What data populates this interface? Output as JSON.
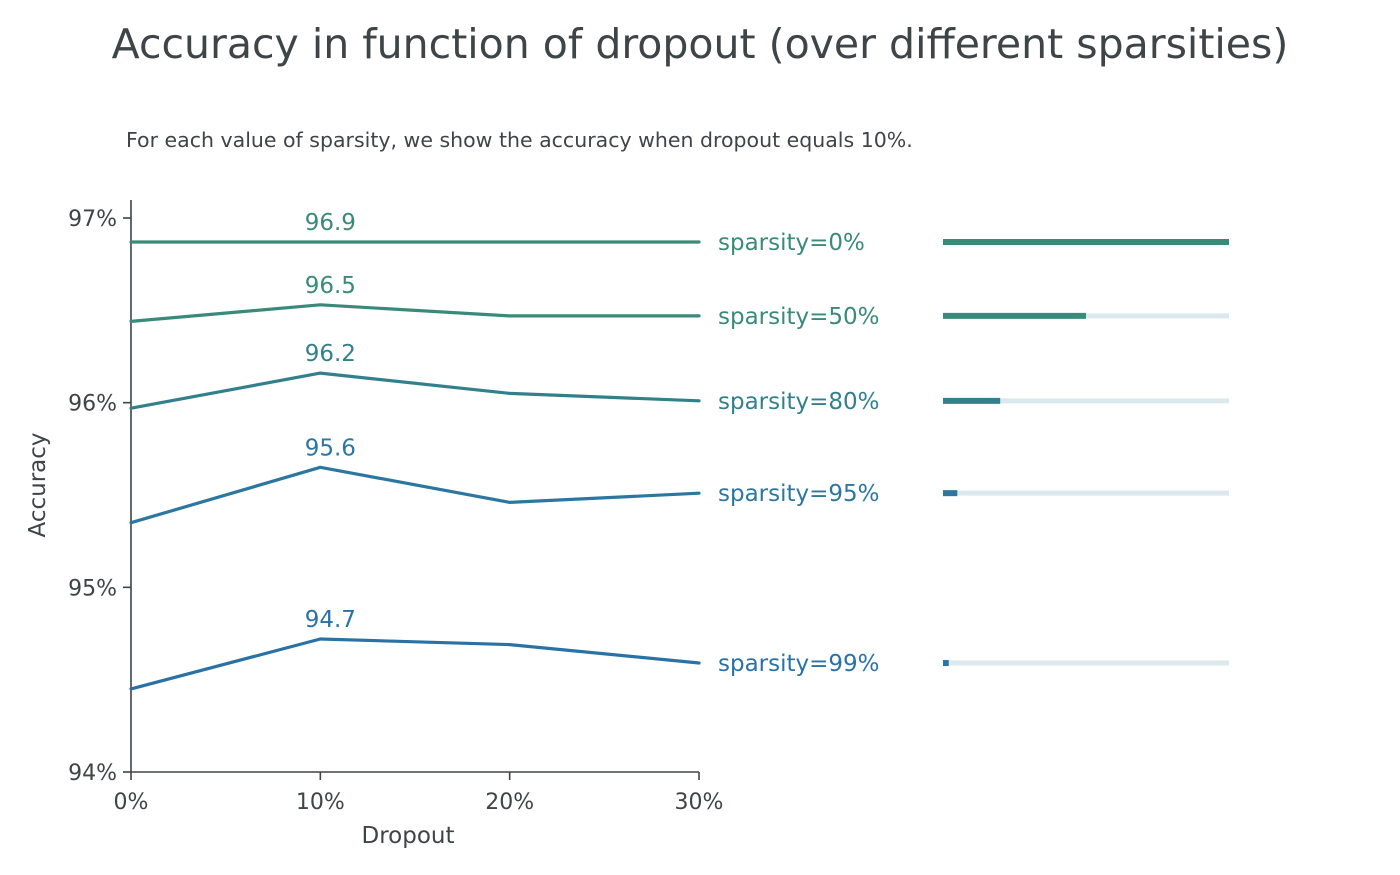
{
  "chart_data": {
    "type": "line",
    "title": "Accuracy in function of dropout (over different sparsities)",
    "subtitle": "For each value of sparsity, we show the accuracy when dropout equals 10%.",
    "xlabel": "Dropout",
    "ylabel": "Accuracy",
    "x": [
      0,
      10,
      20,
      30
    ],
    "x_tick_labels": [
      "0%",
      "10%",
      "20%",
      "30%"
    ],
    "xlim": [
      0,
      30
    ],
    "ylim": [
      94,
      97.1
    ],
    "y_ticks": [
      94,
      95,
      96,
      97
    ],
    "y_tick_labels": [
      "94%",
      "95%",
      "96%",
      "97%"
    ],
    "grid": false,
    "series": [
      {
        "name": "sparsity=0%",
        "sparsity": 0,
        "values": [
          96.87,
          96.87,
          96.87,
          96.87
        ],
        "highlight_label": "96.9",
        "color": "#3a8a78"
      },
      {
        "name": "sparsity=50%",
        "sparsity": 50,
        "values": [
          96.44,
          96.53,
          96.47,
          96.47
        ],
        "highlight_label": "96.5",
        "color": "#3a8a7b"
      },
      {
        "name": "sparsity=80%",
        "sparsity": 80,
        "values": [
          95.97,
          96.16,
          96.05,
          96.01
        ],
        "highlight_label": "96.2",
        "color": "#33808d"
      },
      {
        "name": "sparsity=95%",
        "sparsity": 95,
        "values": [
          95.35,
          95.65,
          95.46,
          95.51
        ],
        "highlight_label": "95.6",
        "color": "#2c77a0"
      },
      {
        "name": "sparsity=99%",
        "sparsity": 99,
        "values": [
          94.45,
          94.72,
          94.69,
          94.59
        ],
        "highlight_label": "94.7",
        "color": "#2a72a6"
      }
    ],
    "density_bar_track_color": "#dbe9ee",
    "axis_color": "#3d4548"
  }
}
